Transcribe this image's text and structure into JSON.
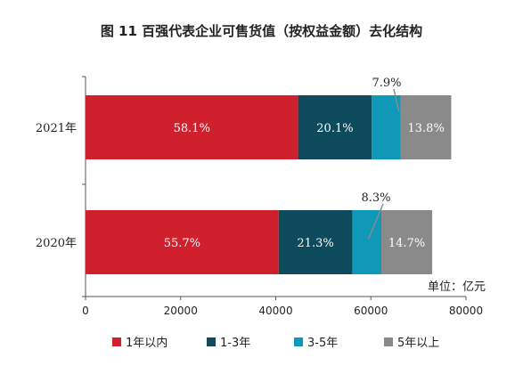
{
  "chart_data": {
    "type": "bar",
    "orientation": "horizontal",
    "stacked": true,
    "title": "图 11 百强代表企业可售货值（按权益金额）去化结构",
    "unit_label": "单位：亿元",
    "categories": [
      "2021年",
      "2020年"
    ],
    "xlim": [
      0,
      80000
    ],
    "x_ticks": [
      "0",
      "20000",
      "40000",
      "60000",
      "80000"
    ],
    "series": [
      {
        "name": "1年以内",
        "color": "#d0202e",
        "values": [
          44700,
          40600
        ],
        "labels": [
          "58.1%",
          "55.7%"
        ],
        "label_color": "#ffffff"
      },
      {
        "name": "1-3年",
        "color": "#0d4b5c",
        "values": [
          15500,
          15500
        ],
        "labels": [
          "20.1%",
          "21.3%"
        ],
        "label_color": "#ffffff"
      },
      {
        "name": "3-5年",
        "color": "#0f98b8",
        "values": [
          6100,
          6100
        ],
        "labels": [
          "7.9%",
          "8.3%"
        ],
        "label_color": "#222222"
      },
      {
        "name": "5年以上",
        "color": "#8a8a8a",
        "values": [
          10600,
          10700
        ],
        "labels": [
          "13.8%",
          "14.7%"
        ],
        "label_color": "#ffffff"
      }
    ],
    "legend_position": "bottom",
    "grid": false
  }
}
